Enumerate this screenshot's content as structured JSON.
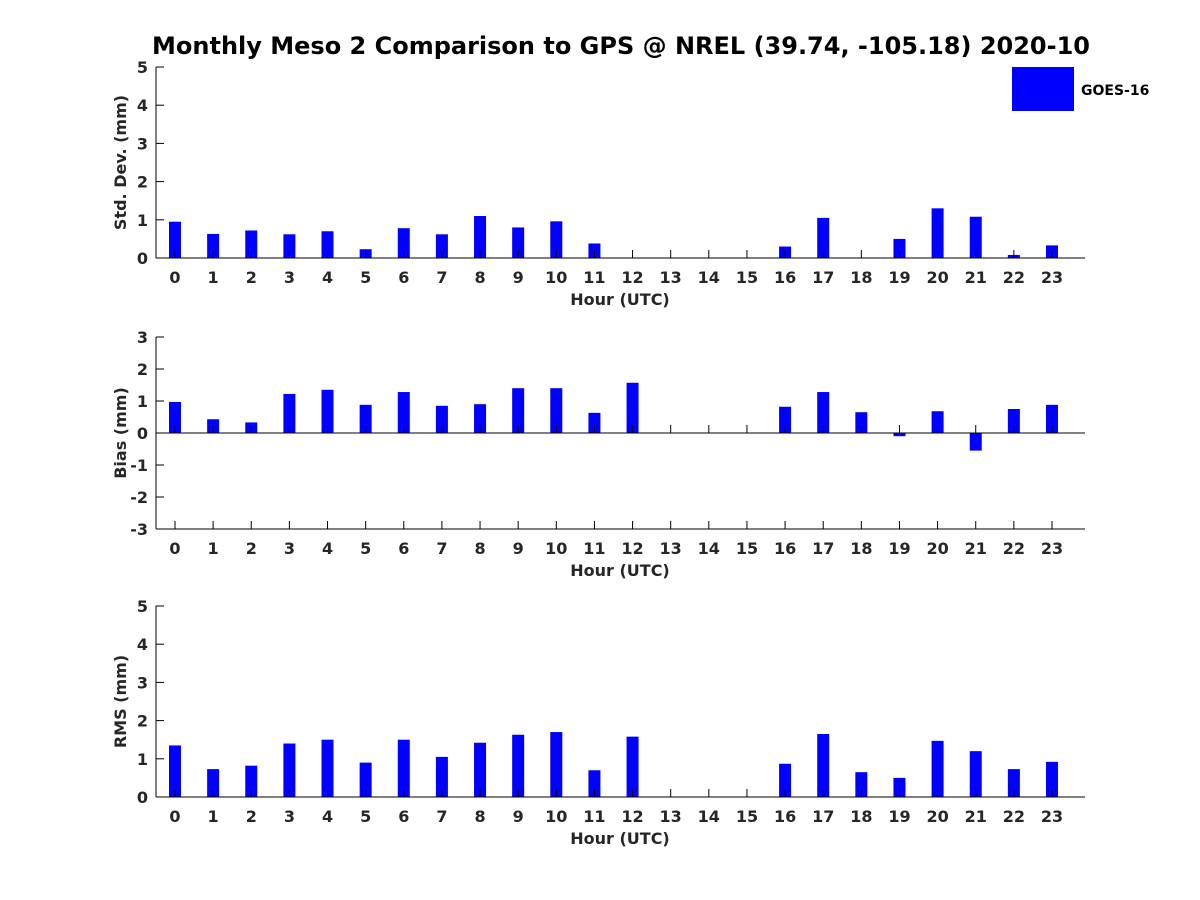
{
  "title": "Monthly Meso 2 Comparison to GPS @ NREL (39.74, -105.18) 2020-10",
  "legend": {
    "label": "GOES-16",
    "color": "#0000ff",
    "placement": "top-right"
  },
  "chart_data": [
    {
      "type": "bar",
      "categories": [
        "0",
        "1",
        "2",
        "3",
        "4",
        "5",
        "6",
        "7",
        "8",
        "9",
        "10",
        "11",
        "12",
        "13",
        "14",
        "15",
        "16",
        "17",
        "18",
        "19",
        "20",
        "21",
        "22",
        "23"
      ],
      "series": [
        {
          "name": "GOES-16",
          "values": [
            0.95,
            0.63,
            0.72,
            0.62,
            0.7,
            0.23,
            0.78,
            0.62,
            1.1,
            0.8,
            0.96,
            0.38,
            null,
            null,
            null,
            null,
            0.3,
            1.05,
            null,
            0.5,
            1.3,
            1.08,
            0.08,
            0.33
          ]
        }
      ],
      "xlabel": "Hour (UTC)",
      "ylabel": "Std. Dev. (mm)",
      "ylim": [
        0,
        5
      ],
      "yticks": [
        0,
        1,
        2,
        3,
        4,
        5
      ],
      "grid": false
    },
    {
      "type": "bar",
      "categories": [
        "0",
        "1",
        "2",
        "3",
        "4",
        "5",
        "6",
        "7",
        "8",
        "9",
        "10",
        "11",
        "12",
        "13",
        "14",
        "15",
        "16",
        "17",
        "18",
        "19",
        "20",
        "21",
        "22",
        "23"
      ],
      "series": [
        {
          "name": "GOES-16",
          "values": [
            0.97,
            0.43,
            0.33,
            1.22,
            1.35,
            0.88,
            1.28,
            0.85,
            0.9,
            1.4,
            1.4,
            0.63,
            1.57,
            null,
            null,
            null,
            0.82,
            1.28,
            0.65,
            -0.1,
            0.68,
            -0.55,
            0.75,
            0.88
          ]
        }
      ],
      "xlabel": "Hour (UTC)",
      "ylabel": "Bias (mm)",
      "ylim": [
        -3,
        3
      ],
      "yticks": [
        -3,
        -2,
        -1,
        0,
        1,
        2,
        3
      ],
      "grid": false
    },
    {
      "type": "bar",
      "categories": [
        "0",
        "1",
        "2",
        "3",
        "4",
        "5",
        "6",
        "7",
        "8",
        "9",
        "10",
        "11",
        "12",
        "13",
        "14",
        "15",
        "16",
        "17",
        "18",
        "19",
        "20",
        "21",
        "22",
        "23"
      ],
      "series": [
        {
          "name": "GOES-16",
          "values": [
            1.35,
            0.73,
            0.82,
            1.4,
            1.5,
            0.9,
            1.5,
            1.05,
            1.42,
            1.63,
            1.7,
            0.7,
            1.58,
            null,
            null,
            null,
            0.87,
            1.65,
            0.65,
            0.5,
            1.47,
            1.2,
            0.73,
            0.92
          ]
        }
      ],
      "xlabel": "Hour (UTC)",
      "ylabel": "RMS (mm)",
      "ylim": [
        0,
        5
      ],
      "yticks": [
        0,
        1,
        2,
        3,
        4,
        5
      ],
      "grid": false
    }
  ]
}
